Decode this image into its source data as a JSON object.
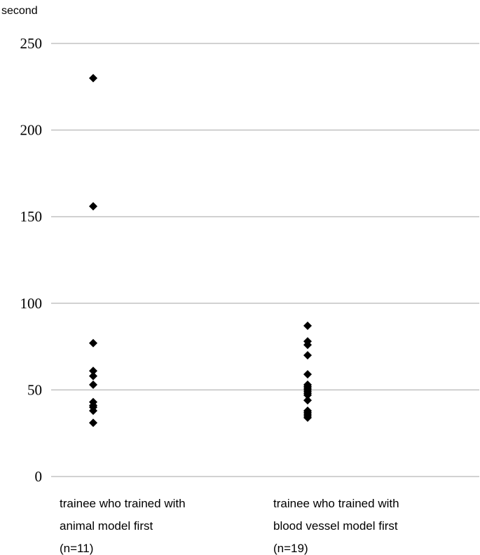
{
  "chart_data": {
    "type": "scatter",
    "ylabel": "second",
    "ylim": [
      0,
      250
    ],
    "yticks": [
      0,
      50,
      100,
      150,
      200,
      250
    ],
    "grid": true,
    "categories": [
      [
        "trainee who trained with",
        "animal model first",
        "(n=11)"
      ],
      [
        "trainee who trained with",
        "blood vessel model first",
        "(n=19)"
      ]
    ],
    "series": [
      {
        "values": [
          230,
          156,
          77,
          61,
          58,
          53,
          43,
          41,
          38,
          31,
          40
        ]
      },
      {
        "values": [
          87,
          78,
          76,
          70,
          59,
          53,
          52,
          51,
          50,
          49,
          47,
          44,
          38,
          37,
          36,
          34,
          50,
          48,
          35
        ]
      }
    ],
    "marker": "diamond",
    "marker_color": "#000000"
  }
}
